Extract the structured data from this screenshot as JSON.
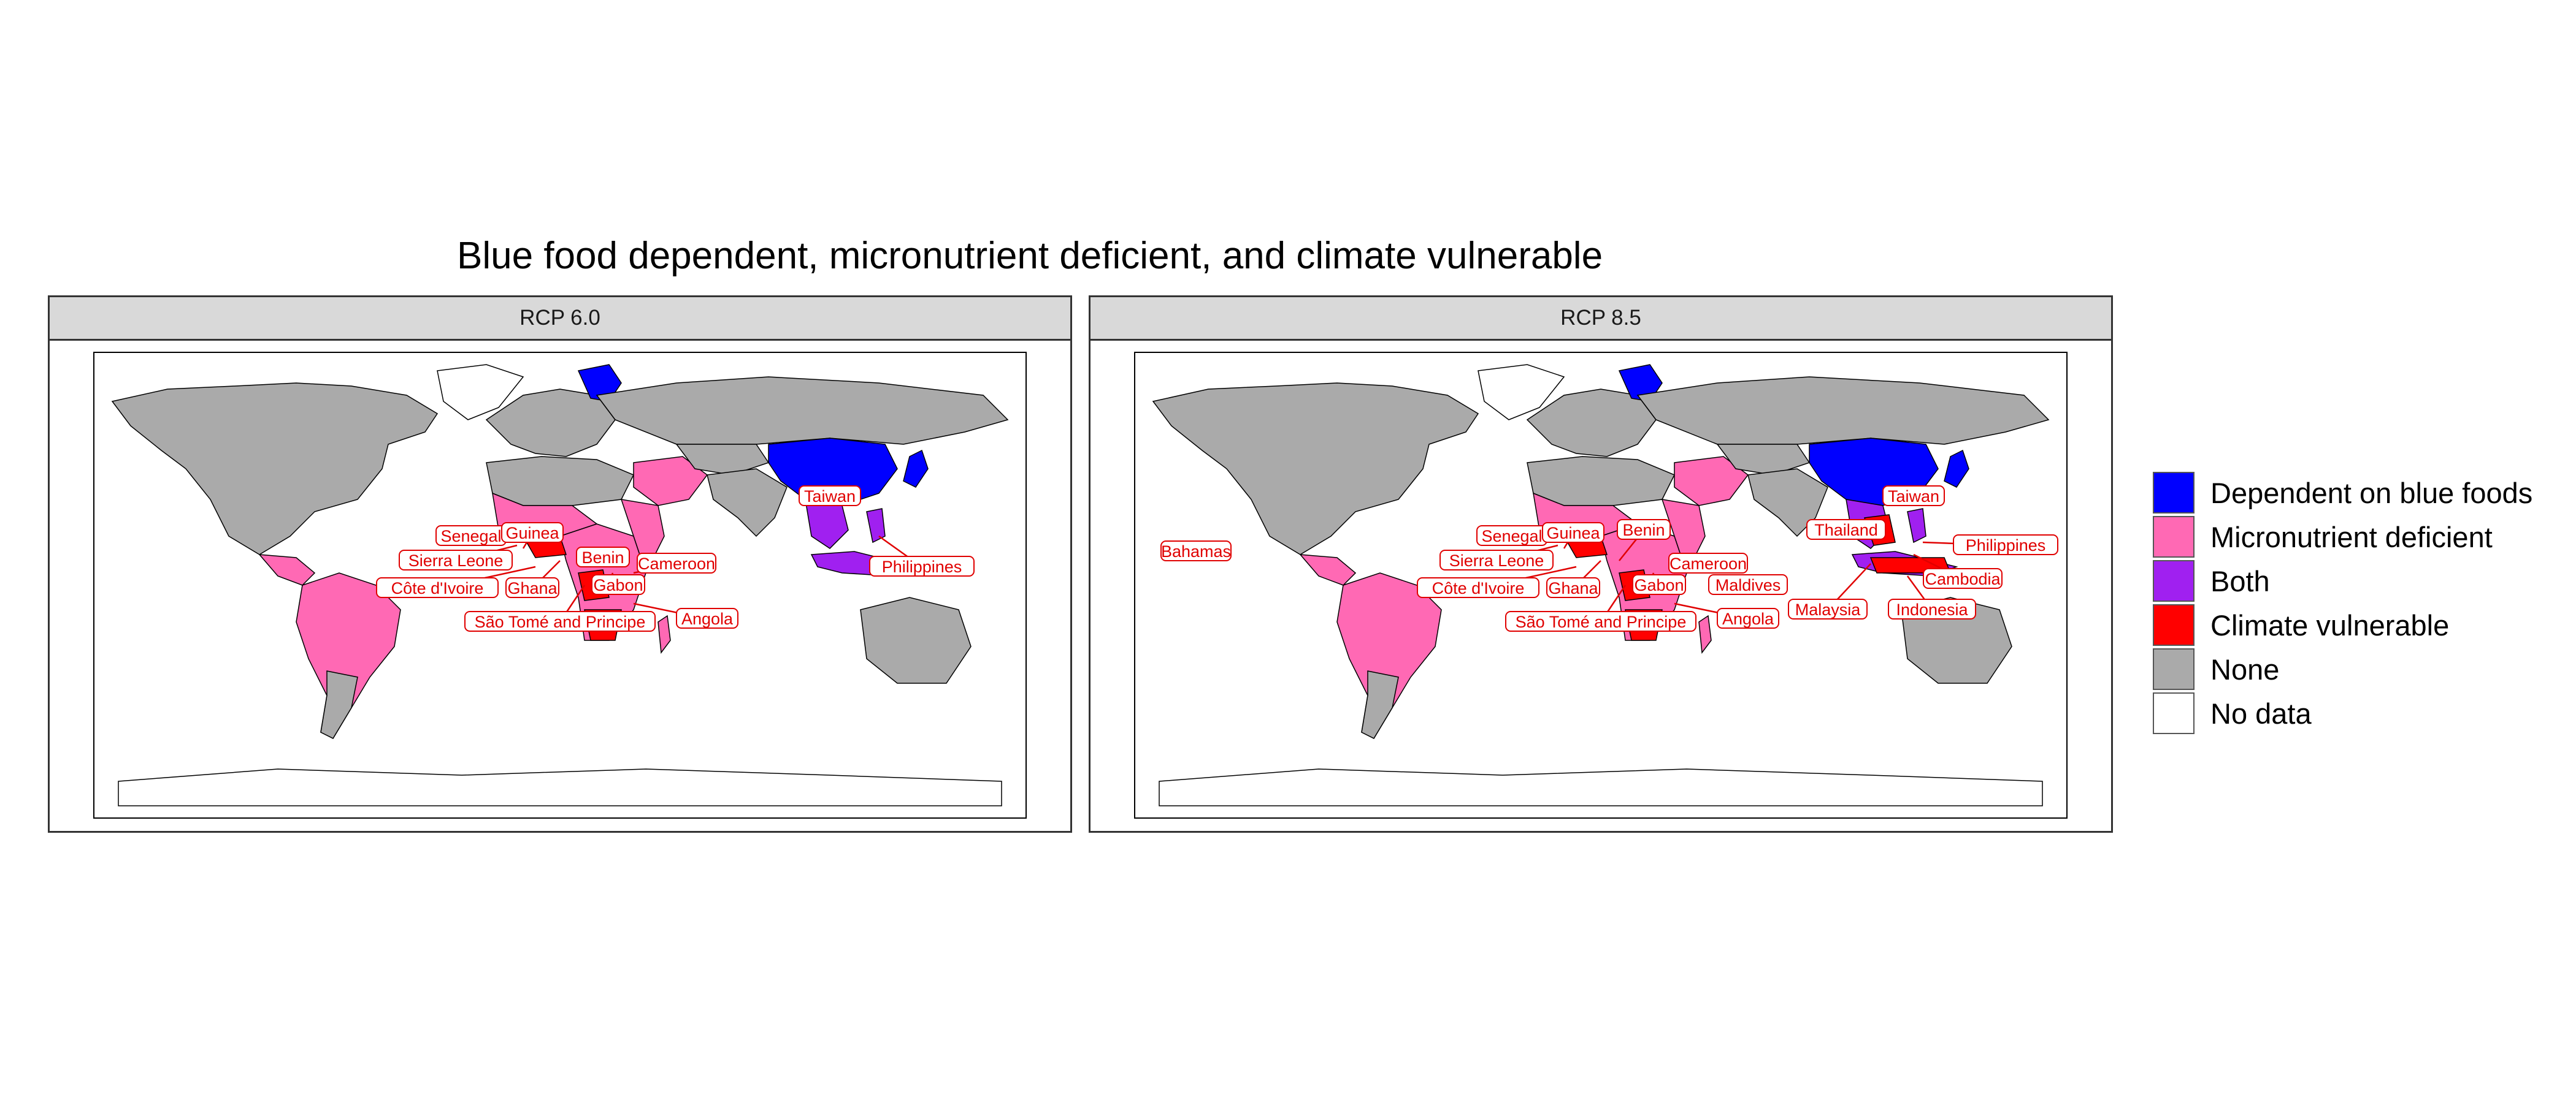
{
  "title": "Blue food dependent, micronutrient deficient, and climate vulnerable",
  "colors": {
    "dependent": "#0000ff",
    "deficient": "#ff69b4",
    "both": "#a020f0",
    "vulnerable": "#ff0000",
    "none": "#aaaaaa",
    "nodata": "#ffffff",
    "label": "#e00000"
  },
  "legend": [
    {
      "label": "Dependent on blue foods",
      "color": "#0000ff"
    },
    {
      "label": "Micronutrient deficient",
      "color": "#ff69b4"
    },
    {
      "label": "Both",
      "color": "#a020f0"
    },
    {
      "label": "Climate vulnerable",
      "color": "#ff0000"
    },
    {
      "label": "None",
      "color": "#aaaaaa"
    },
    {
      "label": "No data",
      "color": "#ffffff"
    }
  ],
  "panels": [
    {
      "strip": "RCP 6.0",
      "labels": [
        "Taiwan",
        "Senegal",
        "Guinea",
        "Sierra Leone",
        "Benin",
        "Cameroon",
        "Côte d'Ivoire",
        "Ghana",
        "Gabon",
        "São Tomé and Principe",
        "Angola",
        "Philippines"
      ]
    },
    {
      "strip": "RCP 8.5",
      "labels": [
        "Taiwan",
        "Bahamas",
        "Senegal",
        "Guinea",
        "Benin",
        "Thailand",
        "Philippines",
        "Sierra Leone",
        "Cameroon",
        "Cambodia",
        "Côte d'Ivoire",
        "Ghana",
        "Gabon",
        "Maldives",
        "Malaysia",
        "Indonesia",
        "São Tomé and Principe",
        "Angola"
      ]
    }
  ]
}
